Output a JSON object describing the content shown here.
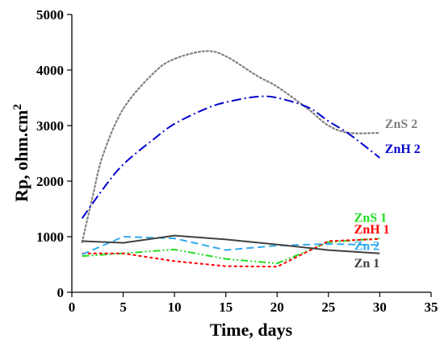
{
  "chart_data": {
    "type": "line",
    "xlabel": "Time, days",
    "ylabel": "Rp, ohm.cm2",
    "xlim": [
      0,
      35
    ],
    "ylim": [
      0,
      5000
    ],
    "x_ticks": [
      "0",
      "5",
      "10",
      "15",
      "20",
      "25",
      "30",
      "35"
    ],
    "y_ticks": [
      "0",
      "1000",
      "2000",
      "3000",
      "4000",
      "5000"
    ],
    "grid": false,
    "legend": "inline labels at right end of each series",
    "series": [
      {
        "name": "ZnS 2",
        "color": "#808080",
        "style": "dotted",
        "points": [
          [
            1,
            900
          ],
          [
            2,
            1700
          ],
          [
            3,
            2450
          ],
          [
            5,
            3300
          ],
          [
            8,
            3950
          ],
          [
            10,
            4200
          ],
          [
            13,
            4340
          ],
          [
            15,
            4250
          ],
          [
            18,
            3900
          ],
          [
            20,
            3700
          ],
          [
            23,
            3300
          ],
          [
            25,
            3000
          ],
          [
            27,
            2870
          ],
          [
            30,
            2870
          ]
        ]
      },
      {
        "name": "ZnH 2",
        "color": "#0000cd",
        "style": "dashdot",
        "points": [
          [
            1,
            1330
          ],
          [
            3,
            1850
          ],
          [
            5,
            2300
          ],
          [
            8,
            2760
          ],
          [
            10,
            3030
          ],
          [
            13,
            3300
          ],
          [
            15,
            3420
          ],
          [
            18,
            3520
          ],
          [
            20,
            3500
          ],
          [
            23,
            3330
          ],
          [
            25,
            3080
          ],
          [
            27,
            2850
          ],
          [
            30,
            2420
          ]
        ]
      },
      {
        "name": "ZnS 1",
        "color": "#22dd22",
        "style": "dashdotdot",
        "points": [
          [
            1,
            650
          ],
          [
            5,
            700
          ],
          [
            10,
            770
          ],
          [
            15,
            600
          ],
          [
            20,
            520
          ],
          [
            25,
            900
          ],
          [
            30,
            970
          ]
        ]
      },
      {
        "name": "ZnH 1",
        "color": "#ff0000",
        "style": "dashed-fine",
        "points": [
          [
            1,
            700
          ],
          [
            5,
            700
          ],
          [
            10,
            560
          ],
          [
            15,
            470
          ],
          [
            20,
            460
          ],
          [
            25,
            920
          ],
          [
            30,
            960
          ]
        ]
      },
      {
        "name": "Zn 2",
        "color": "#33aaee",
        "style": "dashed",
        "points": [
          [
            1,
            680
          ],
          [
            5,
            1000
          ],
          [
            10,
            970
          ],
          [
            15,
            760
          ],
          [
            20,
            840
          ],
          [
            25,
            870
          ],
          [
            30,
            850
          ]
        ]
      },
      {
        "name": "Zn 1",
        "color": "#404040",
        "style": "solid",
        "points": [
          [
            1,
            920
          ],
          [
            5,
            890
          ],
          [
            10,
            1020
          ],
          [
            15,
            950
          ],
          [
            20,
            860
          ],
          [
            25,
            760
          ],
          [
            30,
            700
          ]
        ]
      }
    ]
  }
}
